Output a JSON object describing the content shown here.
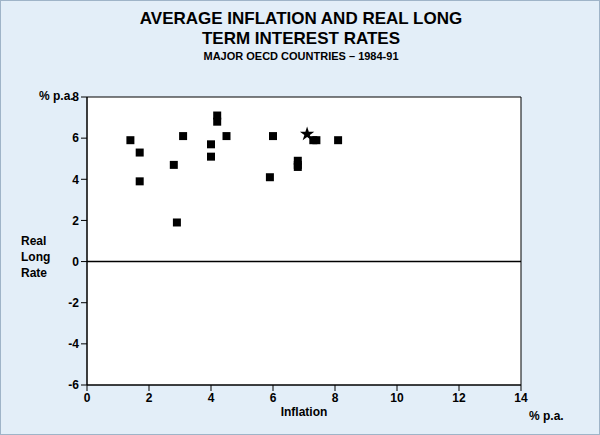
{
  "chart_data": {
    "type": "scatter",
    "title": "AVERAGE INFLATION AND REAL LONG TERM INTEREST RATES",
    "subtitle": "MAJOR OECD COUNTRIES – 1984-91",
    "x_label": "Inflation",
    "x_unit": "% p.a.",
    "y_label": "Real Long Rate",
    "y_unit": "% p.a.",
    "xlim": [
      0,
      14
    ],
    "xticks": [
      0,
      2,
      4,
      6,
      8,
      10,
      12,
      14
    ],
    "ylim": [
      -6,
      8
    ],
    "yticks": [
      -6,
      -4,
      -2,
      0,
      2,
      4,
      6,
      8
    ],
    "grid": false,
    "series": [
      {
        "marker": "square",
        "color": "#000000",
        "x": [
          1.4,
          1.7,
          1.7,
          2.9,
          2.8,
          3.1,
          4.0,
          4.0,
          4.2,
          4.2,
          4.5,
          5.9,
          6.0,
          6.8,
          6.8,
          6.8,
          7.3,
          7.4,
          8.1
        ],
        "y": [
          5.9,
          5.3,
          3.9,
          1.9,
          4.7,
          6.1,
          5.7,
          5.1,
          7.1,
          6.8,
          6.1,
          4.1,
          6.1,
          4.9,
          4.7,
          4.6,
          5.9,
          5.9,
          5.9
        ]
      },
      {
        "marker": "star",
        "color": "#000000",
        "x": [
          7.1
        ],
        "y": [
          6.2
        ]
      }
    ]
  }
}
